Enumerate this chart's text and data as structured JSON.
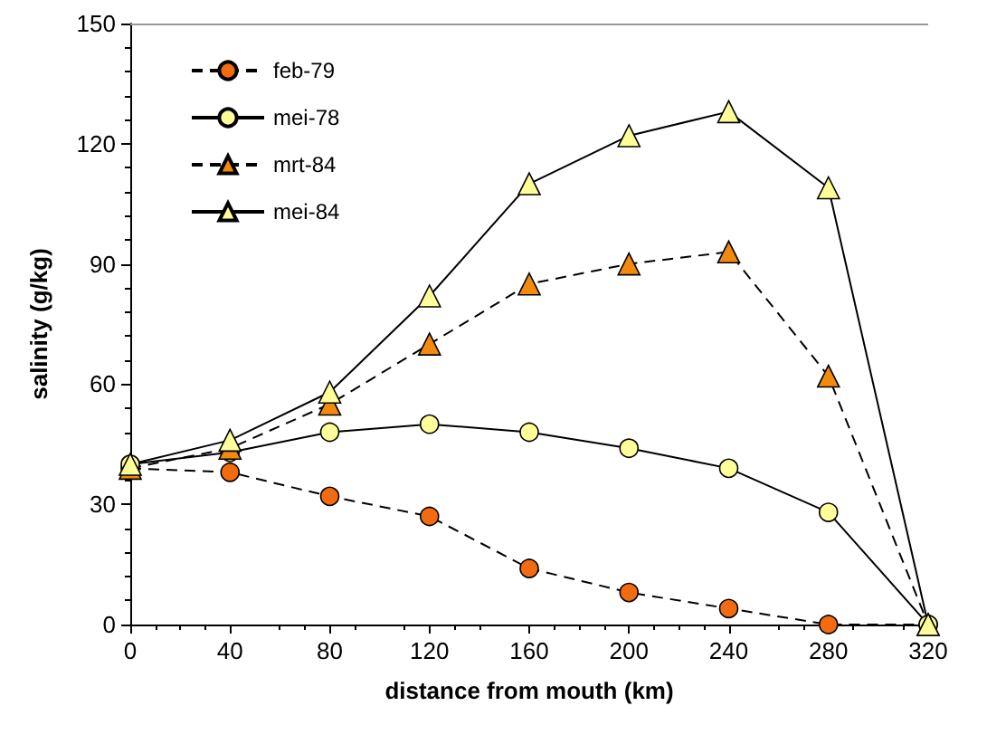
{
  "chart_data": {
    "type": "line",
    "xlabel": "distance from mouth (km)",
    "ylabel": "salinity (g/kg)",
    "x": [
      0,
      40,
      80,
      120,
      160,
      200,
      240,
      280,
      320
    ],
    "series": [
      {
        "name": "feb-79",
        "color": "#f26b10",
        "marker": "circle",
        "line_style": "dashed",
        "values": [
          39,
          38,
          32,
          27,
          14,
          8,
          4,
          0,
          0
        ]
      },
      {
        "name": "mei-78",
        "color": "#ffff99",
        "marker": "circle",
        "line_style": "solid",
        "values": [
          40,
          43,
          48,
          50,
          48,
          44,
          39,
          28,
          0
        ]
      },
      {
        "name": "mrt-84",
        "color": "#f28a10",
        "marker": "triangle",
        "line_style": "dashed",
        "values": [
          39,
          44,
          55,
          70,
          85,
          90,
          93,
          62,
          0
        ]
      },
      {
        "name": "mei-84",
        "color": "#ffff99",
        "marker": "triangle",
        "line_style": "solid",
        "values": [
          40,
          46,
          58,
          82,
          110,
          122,
          128,
          109,
          0
        ]
      }
    ],
    "xlim": [
      0,
      320
    ],
    "xticks": [
      0,
      40,
      80,
      120,
      160,
      200,
      240,
      280,
      320
    ],
    "ylim": [
      0,
      150
    ],
    "yticks": [
      0,
      30,
      60,
      90,
      120,
      150
    ],
    "grid": false,
    "legend": "top left"
  }
}
